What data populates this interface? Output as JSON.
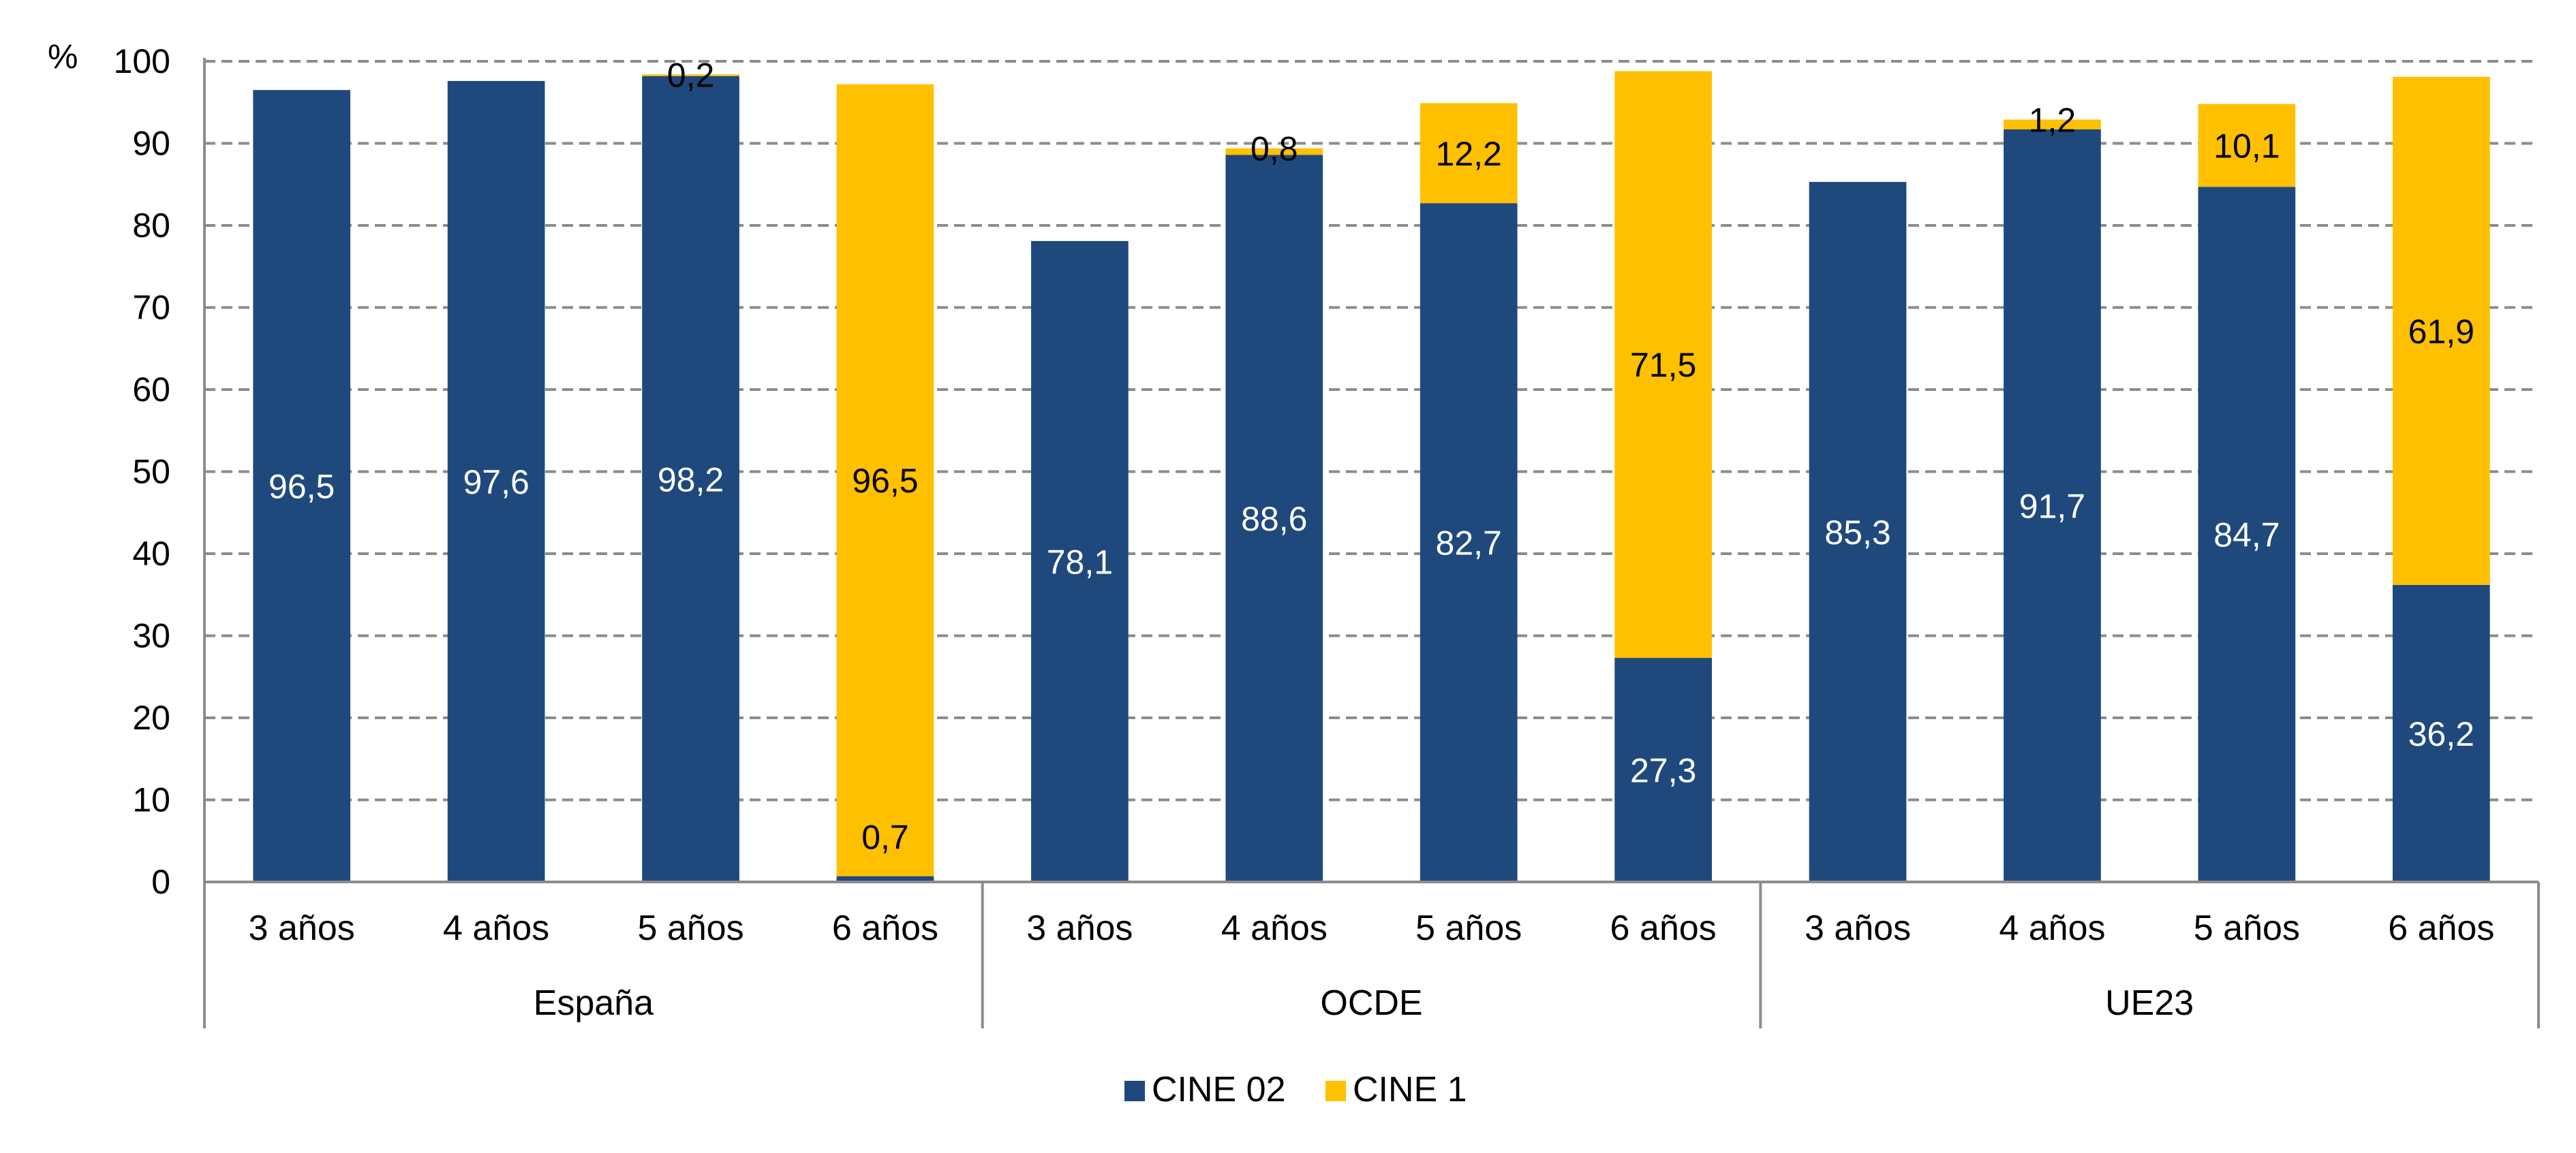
{
  "chart_data": {
    "type": "bar",
    "stacked": true,
    "yunit": "%",
    "ylim": [
      0,
      100
    ],
    "yticks": [
      0,
      10,
      20,
      30,
      40,
      50,
      60,
      70,
      80,
      90,
      100
    ],
    "grid": true,
    "legend_position": "bottom",
    "groups": [
      {
        "label": "España",
        "categories": [
          "3 años",
          "4 años",
          "5 años",
          "6 años"
        ]
      },
      {
        "label": "OCDE",
        "categories": [
          "3 años",
          "4 años",
          "5 años",
          "6 años"
        ]
      },
      {
        "label": "UE23",
        "categories": [
          "3 años",
          "4 años",
          "5 años",
          "6 años"
        ]
      }
    ],
    "series": [
      {
        "name": "CINE 02",
        "color": "#1F497D",
        "values": [
          96.5,
          97.6,
          98.2,
          0.7,
          78.1,
          88.6,
          82.7,
          27.3,
          85.3,
          91.7,
          84.7,
          36.2
        ],
        "labels": [
          "96,5",
          "97,6",
          "98,2",
          "0,7",
          "78,1",
          "88,6",
          "82,7",
          "27,3",
          "85,3",
          "91,7",
          "84,7",
          "36,2"
        ]
      },
      {
        "name": "CINE 1",
        "color": "#FFC000",
        "values": [
          0,
          0,
          0.2,
          96.5,
          0,
          0.8,
          12.2,
          71.5,
          0,
          1.2,
          10.1,
          61.9
        ],
        "labels": [
          "",
          "",
          "0,2",
          "96,5",
          "",
          "0,8",
          "12,2",
          "71,5",
          "",
          "1,2",
          "10,1",
          "61,9"
        ]
      }
    ]
  }
}
